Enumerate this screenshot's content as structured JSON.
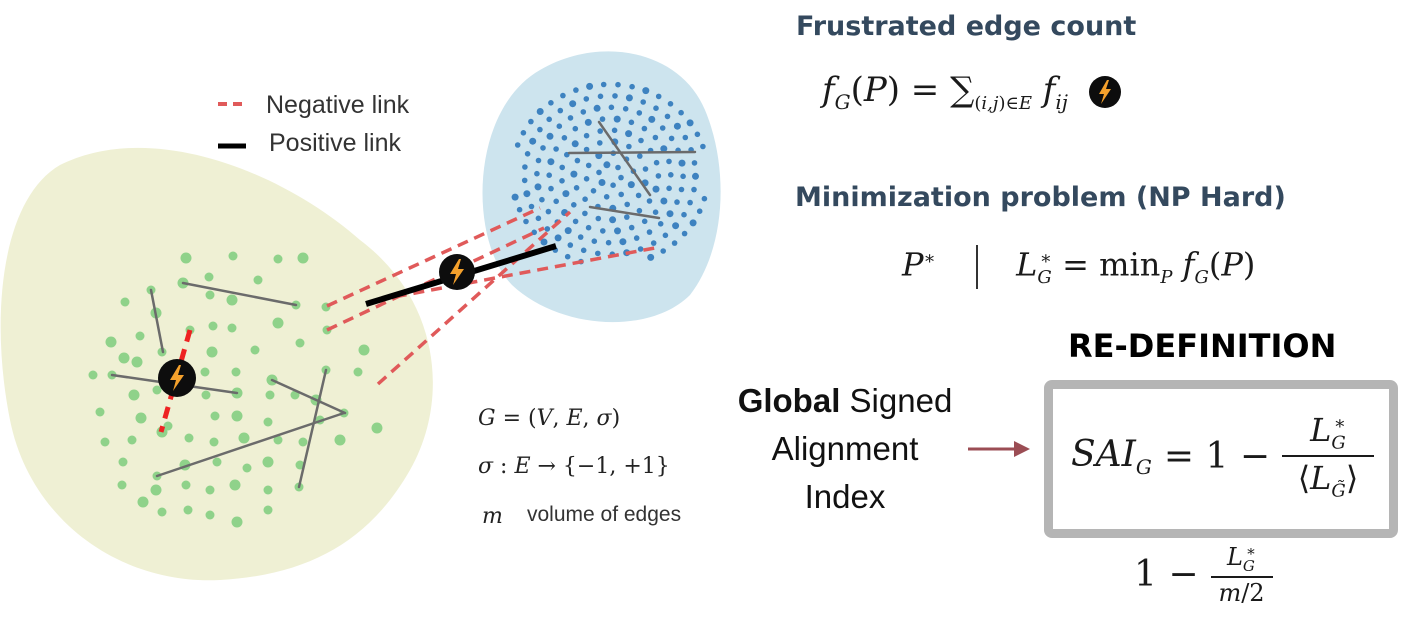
{
  "legend": {
    "negative": "Negative link",
    "positive": "Positive link"
  },
  "sections": {
    "frustrated_title": "Frustrated edge count",
    "minimization_title": "Minimization problem (NP Hard)",
    "redefinition_title": "RE-DEFINITION"
  },
  "global_index": {
    "bold": "Global",
    "line1_rest": " Signed",
    "line2": "Alignment",
    "line3": "Index"
  },
  "graph_def": {
    "volume_text": "volume of edges"
  },
  "colors": {
    "left_cluster_fill": "#eff0d4",
    "right_cluster_fill": "#cde4ee",
    "green_node": "#8fd28a",
    "blue_node": "#3d82c0",
    "intra_edge": "#6b6b6b",
    "negative_link": "#e05a5a",
    "positive_link": "#000000",
    "bolt_orange": "#f5a12c",
    "heading": "#34495e",
    "box_border": "#b5b5b5",
    "arrow": "#9b4d54"
  },
  "icons": {
    "bolt": "lightning-bolt-icon"
  }
}
